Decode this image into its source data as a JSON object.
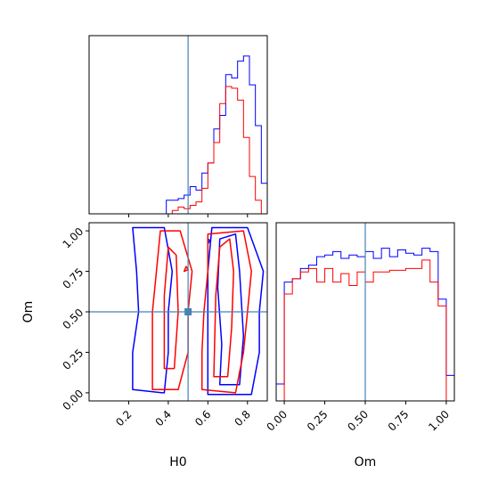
{
  "chart_data": {
    "type": "corner",
    "variables": [
      "H0",
      "Om"
    ],
    "truth": {
      "H0": 0.5,
      "Om": 0.5
    },
    "colors": {
      "run_blue": "#0000ff",
      "run_red": "#ff0000",
      "truth": "#4682b4"
    },
    "panels": [
      {
        "id": "H0_hist",
        "type": "histogram",
        "x_range": [
          0.0,
          0.9
        ],
        "xticks": [
          0.2,
          0.4,
          0.6,
          0.8
        ],
        "tick_labels_shown": false,
        "bin_edges": [
          0.0,
          0.03,
          0.06,
          0.09,
          0.12,
          0.15,
          0.18,
          0.21,
          0.24,
          0.27,
          0.3,
          0.33,
          0.36,
          0.39,
          0.42,
          0.45,
          0.48,
          0.51,
          0.54,
          0.57,
          0.6,
          0.63,
          0.66,
          0.69,
          0.72,
          0.75,
          0.78,
          0.81,
          0.84,
          0.87,
          0.9
        ],
        "series": [
          {
            "color": "blue",
            "values": [
              0,
              0,
              0,
              0,
              0,
              0,
              0,
              0,
              0,
              0,
              0,
              0,
              0,
              0.08,
              0.08,
              0.09,
              0.11,
              0.16,
              0.14,
              0.24,
              0.3,
              0.5,
              0.58,
              0.82,
              0.8,
              0.9,
              0.93,
              0.76,
              0.52,
              0.18
            ]
          },
          {
            "color": "red",
            "values": [
              0,
              0,
              0,
              0,
              0,
              0,
              0,
              0,
              0,
              0,
              0,
              0,
              0,
              0,
              0.02,
              0.04,
              0.03,
              0.05,
              0.07,
              0.15,
              0.3,
              0.42,
              0.65,
              0.75,
              0.74,
              0.67,
              0.45,
              0.22,
              0.08,
              0
            ]
          }
        ]
      },
      {
        "id": "H0_Om_contour",
        "type": "contour",
        "x_range": [
          0.0,
          0.9
        ],
        "y_range": [
          -0.05,
          1.05
        ],
        "xticks": [
          0.2,
          0.4,
          0.6,
          0.8
        ],
        "xtick_labels": [
          "0.2",
          "0.4",
          "0.6",
          "0.8"
        ],
        "yticks": [
          0.0,
          0.25,
          0.5,
          0.75,
          1.0
        ],
        "ytick_labels": [
          "0.00",
          "0.25",
          "0.50",
          "0.75",
          "1.00"
        ],
        "xlabel": "H0",
        "ylabel": "Om",
        "series": [
          {
            "color": "blue",
            "contours": [
              [
                [
                  0.37,
                  0.0
                ],
                [
                  0.22,
                  0.02
                ],
                [
                  0.22,
                  0.25
                ],
                [
                  0.25,
                  0.5
                ],
                [
                  0.24,
                  0.75
                ],
                [
                  0.22,
                  1.02
                ],
                [
                  0.38,
                  1.02
                ],
                [
                  0.42,
                  0.75
                ],
                [
                  0.4,
                  0.5
                ],
                [
                  0.4,
                  0.25
                ],
                [
                  0.38,
                  0.0
                ]
              ],
              [
                [
                  0.6,
                  -0.01
                ],
                [
                  0.82,
                  -0.01
                ],
                [
                  0.86,
                  0.25
                ],
                [
                  0.86,
                  0.5
                ],
                [
                  0.88,
                  0.75
                ],
                [
                  0.8,
                  1.02
                ],
                [
                  0.62,
                  1.02
                ],
                [
                  0.6,
                  0.75
                ],
                [
                  0.6,
                  0.5
                ],
                [
                  0.6,
                  0.25
                ],
                [
                  0.6,
                  -0.01
                ]
              ],
              [
                [
                  0.66,
                  0.05
                ],
                [
                  0.76,
                  0.05
                ],
                [
                  0.78,
                  0.35
                ],
                [
                  0.76,
                  0.75
                ],
                [
                  0.74,
                  0.98
                ],
                [
                  0.66,
                  0.95
                ],
                [
                  0.65,
                  0.65
                ],
                [
                  0.67,
                  0.3
                ],
                [
                  0.66,
                  0.05
                ]
              ],
              [
                [
                  0.6,
                  0.92
                ],
                [
                  0.61,
                  0.94
                ],
                [
                  0.6,
                  0.95
                ],
                [
                  0.6,
                  0.92
                ]
              ]
            ]
          },
          {
            "color": "red",
            "contours": [
              [
                [
                  0.32,
                  0.02
                ],
                [
                  0.45,
                  0.02
                ],
                [
                  0.5,
                  0.25
                ],
                [
                  0.5,
                  0.5
                ],
                [
                  0.52,
                  0.75
                ],
                [
                  0.46,
                  1.0
                ],
                [
                  0.36,
                  1.0
                ],
                [
                  0.34,
                  0.75
                ],
                [
                  0.32,
                  0.5
                ],
                [
                  0.32,
                  0.25
                ],
                [
                  0.32,
                  0.02
                ]
              ],
              [
                [
                  0.38,
                  0.15
                ],
                [
                  0.43,
                  0.15
                ],
                [
                  0.45,
                  0.5
                ],
                [
                  0.44,
                  0.85
                ],
                [
                  0.4,
                  0.9
                ],
                [
                  0.38,
                  0.6
                ],
                [
                  0.38,
                  0.15
                ]
              ],
              [
                [
                  0.57,
                  0.02
                ],
                [
                  0.74,
                  0.0
                ],
                [
                  0.78,
                  0.25
                ],
                [
                  0.8,
                  0.5
                ],
                [
                  0.82,
                  0.75
                ],
                [
                  0.78,
                  1.0
                ],
                [
                  0.6,
                  0.98
                ],
                [
                  0.6,
                  0.75
                ],
                [
                  0.58,
                  0.5
                ],
                [
                  0.57,
                  0.25
                ],
                [
                  0.57,
                  0.02
                ]
              ],
              [
                [
                  0.63,
                  0.1
                ],
                [
                  0.7,
                  0.1
                ],
                [
                  0.72,
                  0.4
                ],
                [
                  0.73,
                  0.75
                ],
                [
                  0.71,
                  0.95
                ],
                [
                  0.66,
                  0.9
                ],
                [
                  0.64,
                  0.6
                ],
                [
                  0.63,
                  0.1
                ]
              ],
              [
                [
                  0.48,
                  0.75
                ],
                [
                  0.5,
                  0.76
                ],
                [
                  0.49,
                  0.78
                ],
                [
                  0.48,
                  0.75
                ]
              ]
            ]
          }
        ]
      },
      {
        "id": "Om_hist",
        "type": "histogram",
        "x_range": [
          -0.05,
          1.05
        ],
        "xticks": [
          0.0,
          0.25,
          0.5,
          0.75,
          1.0
        ],
        "xtick_labels": [
          "0.00",
          "0.25",
          "0.50",
          "0.75",
          "1.00"
        ],
        "xlabel": "Om",
        "bin_edges": [
          -0.05,
          0.0,
          0.05,
          0.1,
          0.15,
          0.2,
          0.25,
          0.3,
          0.35,
          0.4,
          0.45,
          0.5,
          0.55,
          0.6,
          0.65,
          0.7,
          0.75,
          0.8,
          0.85,
          0.9,
          0.95,
          1.0,
          1.05
        ],
        "series": [
          {
            "color": "blue",
            "values": [
              0.1,
              0.7,
              0.72,
              0.78,
              0.8,
              0.85,
              0.86,
              0.88,
              0.84,
              0.86,
              0.85,
              0.88,
              0.84,
              0.9,
              0.85,
              0.89,
              0.87,
              0.86,
              0.9,
              0.88,
              0.6,
              0.15
            ]
          },
          {
            "color": "red",
            "values": [
              0.0,
              0.63,
              0.72,
              0.76,
              0.78,
              0.7,
              0.78,
              0.7,
              0.75,
              0.68,
              0.76,
              0.7,
              0.76,
              0.76,
              0.77,
              0.77,
              0.78,
              0.78,
              0.83,
              0.7,
              0.56,
              0.0
            ]
          }
        ]
      }
    ]
  }
}
